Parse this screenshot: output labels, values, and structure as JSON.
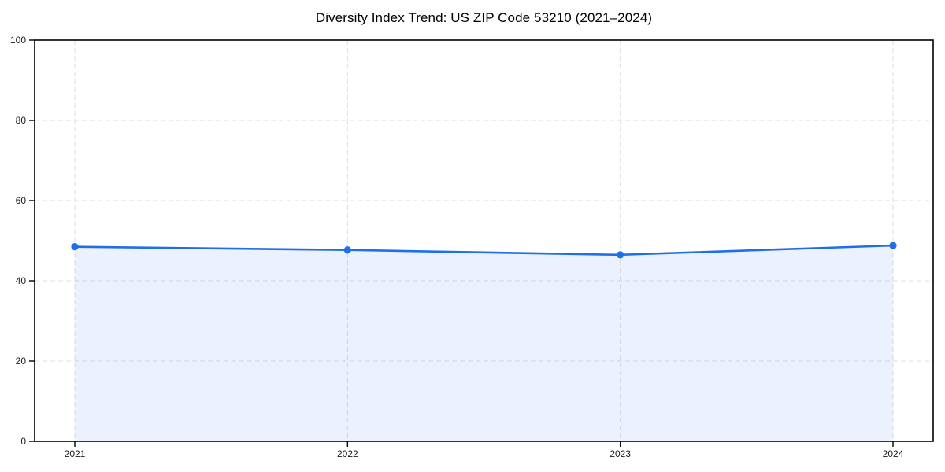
{
  "chart_data": {
    "type": "line",
    "title": "Diversity Index Trend: US ZIP Code 53210 (2021–2024)",
    "x": [
      "2021",
      "2022",
      "2023",
      "2024"
    ],
    "series": [
      {
        "name": "Diversity Index",
        "values": [
          48.5,
          47.7,
          46.5,
          48.8
        ]
      }
    ],
    "xlabel": "",
    "ylabel": "",
    "ylim": [
      0,
      100
    ],
    "yticks": [
      0,
      20,
      40,
      60,
      80,
      100
    ],
    "grid": true,
    "grid_style": "dashed",
    "marker": "circle",
    "area_fill": true,
    "legend": "none",
    "colors": {
      "line": "#1f6fe8",
      "fill_rgba": "rgba(31,111,232,0.09)",
      "grid": "#dedede",
      "spine": "#000000",
      "tick_label": "#1a1a1a",
      "background": "#ffffff"
    }
  }
}
